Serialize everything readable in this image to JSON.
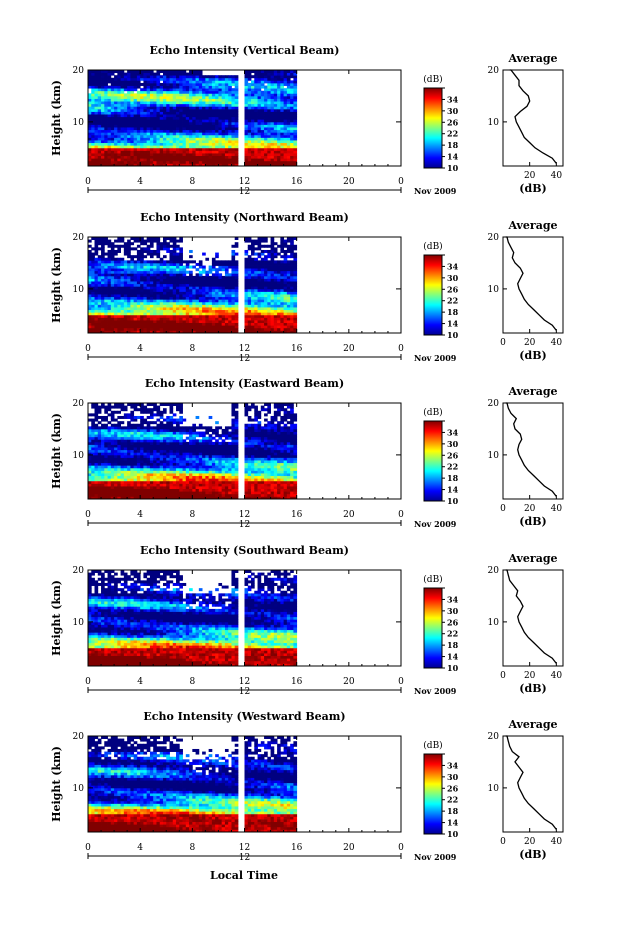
{
  "figure": {
    "date_label": "Nov 2009",
    "xlabel": "Local Time"
  },
  "chart_data": [
    {
      "type": "heatmap",
      "title": "Echo Intensity (Vertical Beam)",
      "ylabel": "Height (km)",
      "xlim": [
        0,
        24
      ],
      "ylim": [
        1.5,
        20
      ],
      "x_ticks": [
        "0",
        "4",
        "8",
        "12",
        "16",
        "20",
        "0"
      ],
      "y_ticks": [
        10,
        20
      ],
      "day_label": "12",
      "colorbar": {
        "label": "(dB)",
        "range": [
          10,
          38
        ],
        "ticks": [
          10,
          14,
          18,
          22,
          26,
          30,
          34,
          38
        ]
      },
      "data_gap_hours": [
        11.5,
        12.0
      ],
      "data_end_hour": 16,
      "average_profile": {
        "title": "Average",
        "xlabel": "(dB)",
        "x_ticks": [
          20,
          40
        ],
        "xlim": [
          0,
          45
        ],
        "ylim": [
          1.5,
          20
        ],
        "y_ticks": [
          10,
          20
        ],
        "dB": [
          40,
          37,
          30,
          24,
          20,
          16,
          14,
          12,
          10,
          9,
          13,
          18,
          20,
          19,
          15,
          12,
          12,
          9,
          6,
          5
        ],
        "height": [
          2,
          3,
          4,
          5,
          6,
          7,
          8,
          9,
          10,
          11,
          12,
          13,
          14,
          15,
          16,
          17,
          18,
          19,
          20,
          21
        ]
      }
    },
    {
      "type": "heatmap",
      "title": "Echo Intensity (Northward Beam)",
      "ylabel": "Height (km)",
      "xlim": [
        0,
        24
      ],
      "ylim": [
        1.5,
        20
      ],
      "x_ticks": [
        "0",
        "4",
        "8",
        "12",
        "16",
        "20",
        "0"
      ],
      "y_ticks": [
        10,
        20
      ],
      "day_label": "12",
      "colorbar": {
        "label": "(dB)",
        "range": [
          10,
          38
        ],
        "ticks": [
          10,
          14,
          18,
          22,
          26,
          30,
          34,
          38
        ]
      },
      "data_gap_hours": [
        11.5,
        12.0
      ],
      "data_end_hour": 16,
      "average_profile": {
        "title": "Average",
        "xlabel": "(dB)",
        "x_ticks": [
          0,
          20,
          40
        ],
        "xlim": [
          0,
          45
        ],
        "ylim": [
          1.5,
          20
        ],
        "y_ticks": [
          10,
          20
        ],
        "dB": [
          40,
          37,
          31,
          27,
          23,
          19,
          16,
          14,
          12,
          11,
          13,
          15,
          13,
          9,
          7,
          8,
          6,
          4,
          3,
          2
        ],
        "height": [
          2,
          3,
          4,
          5,
          6,
          7,
          8,
          9,
          10,
          11,
          12,
          13,
          14,
          15,
          16,
          17,
          18,
          19,
          20,
          21
        ]
      }
    },
    {
      "type": "heatmap",
      "title": "Echo Intensity (Eastward Beam)",
      "ylabel": "Height (km)",
      "xlim": [
        0,
        24
      ],
      "ylim": [
        1.5,
        20
      ],
      "x_ticks": [
        "0",
        "4",
        "8",
        "12",
        "16",
        "20",
        "0"
      ],
      "y_ticks": [
        10,
        20
      ],
      "day_label": "12",
      "colorbar": {
        "label": "(dB)",
        "range": [
          10,
          38
        ],
        "ticks": [
          10,
          14,
          18,
          22,
          26,
          30,
          34,
          38
        ]
      },
      "data_gap_hours": [
        11.5,
        12.0
      ],
      "data_end_hour": 16,
      "average_profile": {
        "title": "Average",
        "xlabel": "(dB)",
        "x_ticks": [
          0,
          20,
          40
        ],
        "xlim": [
          0,
          45
        ],
        "ylim": [
          1.5,
          20
        ],
        "y_ticks": [
          10,
          20
        ],
        "dB": [
          40,
          37,
          31,
          27,
          23,
          19,
          16,
          14,
          12,
          11,
          12,
          14,
          13,
          9,
          8,
          10,
          6,
          4,
          3,
          2
        ],
        "height": [
          2,
          3,
          4,
          5,
          6,
          7,
          8,
          9,
          10,
          11,
          12,
          13,
          14,
          15,
          16,
          17,
          18,
          19,
          20,
          21
        ]
      }
    },
    {
      "type": "heatmap",
      "title": "Echo Intensity (Southward Beam)",
      "ylabel": "Height (km)",
      "xlim": [
        0,
        24
      ],
      "ylim": [
        1.5,
        20
      ],
      "x_ticks": [
        "0",
        "4",
        "8",
        "12",
        "16",
        "20",
        "0"
      ],
      "y_ticks": [
        10,
        20
      ],
      "day_label": "12",
      "colorbar": {
        "label": "(dB)",
        "range": [
          10,
          38
        ],
        "ticks": [
          10,
          14,
          18,
          22,
          26,
          30,
          34,
          38
        ]
      },
      "data_gap_hours": [
        11.5,
        12.0
      ],
      "data_end_hour": 16,
      "average_profile": {
        "title": "Average",
        "xlabel": "(dB)",
        "x_ticks": [
          0,
          20,
          40
        ],
        "xlim": [
          0,
          45
        ],
        "ylim": [
          1.5,
          20
        ],
        "y_ticks": [
          10,
          20
        ],
        "dB": [
          40,
          37,
          31,
          27,
          23,
          19,
          16,
          14,
          12,
          11,
          13,
          15,
          13,
          10,
          11,
          8,
          5,
          4,
          3,
          2
        ],
        "height": [
          2,
          3,
          4,
          5,
          6,
          7,
          8,
          9,
          10,
          11,
          12,
          13,
          14,
          15,
          16,
          17,
          18,
          19,
          20,
          21
        ]
      }
    },
    {
      "type": "heatmap",
      "title": "Echo Intensity (Westward Beam)",
      "ylabel": "Height (km)",
      "xlim": [
        0,
        24
      ],
      "ylim": [
        1.5,
        20
      ],
      "x_ticks": [
        "0",
        "4",
        "8",
        "12",
        "16",
        "20",
        "0"
      ],
      "y_ticks": [
        10,
        20
      ],
      "day_label": "12",
      "colorbar": {
        "label": "(dB)",
        "range": [
          10,
          38
        ],
        "ticks": [
          10,
          14,
          18,
          22,
          26,
          30,
          34,
          38
        ]
      },
      "data_gap_hours": [
        11.5,
        12.0
      ],
      "data_end_hour": 16,
      "average_profile": {
        "title": "Average",
        "xlabel": "(dB)",
        "x_ticks": [
          0,
          20,
          40
        ],
        "xlim": [
          0,
          45
        ],
        "ylim": [
          1.5,
          20
        ],
        "y_ticks": [
          10,
          20
        ],
        "dB": [
          40,
          37,
          31,
          27,
          23,
          19,
          16,
          14,
          12,
          11,
          13,
          15,
          12,
          9,
          12,
          7,
          5,
          4,
          3,
          2
        ],
        "height": [
          2,
          3,
          4,
          5,
          6,
          7,
          8,
          9,
          10,
          11,
          12,
          13,
          14,
          15,
          16,
          17,
          18,
          19,
          20,
          21
        ]
      }
    }
  ]
}
